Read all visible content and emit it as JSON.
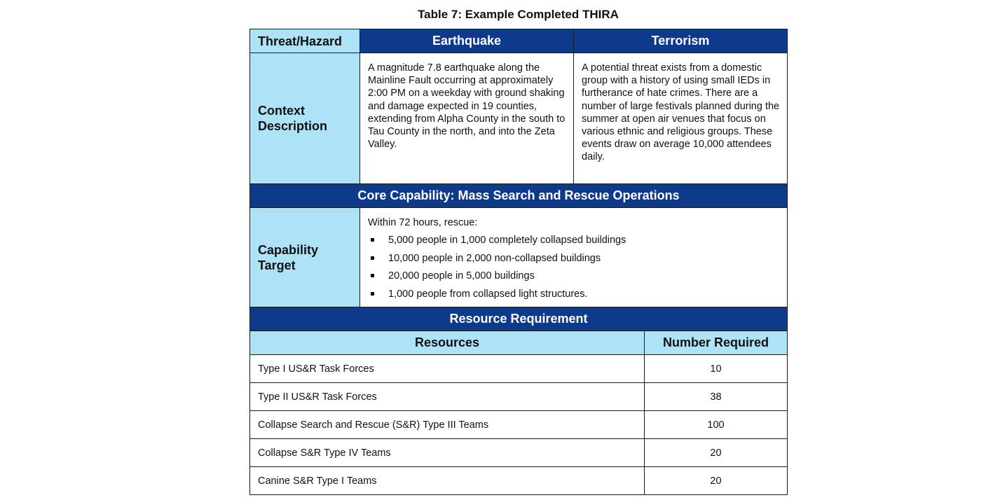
{
  "caption": "Table 7: Example Completed THIRA",
  "header": {
    "threat_hazard_label": "Threat/Hazard",
    "hazards": [
      "Earthquake",
      "Terrorism"
    ]
  },
  "context": {
    "label_line1": "Context",
    "label_line2": "Description",
    "earthquake": "A magnitude 7.8 earthquake along the Mainline Fault occurring at approximately 2:00 PM on a weekday with ground shaking and damage expected in 19 counties, extending from Alpha County in the south to Tau County in the north, and into the Zeta Valley.",
    "terrorism": "A potential threat exists from a domestic group with a history of using small IEDs in furtherance of hate crimes. There are a number of large festivals planned during the summer at open air venues that focus on various ethnic and religious groups. These events draw on average 10,000 attendees daily."
  },
  "core_capability": "Core Capability: Mass Search and Rescue Operations",
  "capability_target": {
    "label_line1": "Capability",
    "label_line2": "Target",
    "intro": "Within 72 hours, rescue:",
    "items": [
      "5,000 people in 1,000 completely collapsed buildings",
      "10,000 people in 2,000 non-collapsed buildings",
      "20,000 people in 5,000 buildings",
      "1,000 people from collapsed light structures."
    ]
  },
  "resource_requirement": {
    "title": "Resource Requirement",
    "col_resources": "Resources",
    "col_number": "Number Required",
    "rows": [
      {
        "resource": "Type I US&R Task Forces",
        "number": "10"
      },
      {
        "resource": "Type II US&R Task Forces",
        "number": "38"
      },
      {
        "resource": "Collapse Search and Rescue (S&R) Type III Teams",
        "number": "100"
      },
      {
        "resource": "Collapse S&R Type IV Teams",
        "number": "20"
      },
      {
        "resource": "Canine S&R Type I Teams",
        "number": "20"
      }
    ]
  },
  "colors": {
    "header_blue": "#0e3a8c",
    "label_light_blue": "#aee3f7"
  }
}
